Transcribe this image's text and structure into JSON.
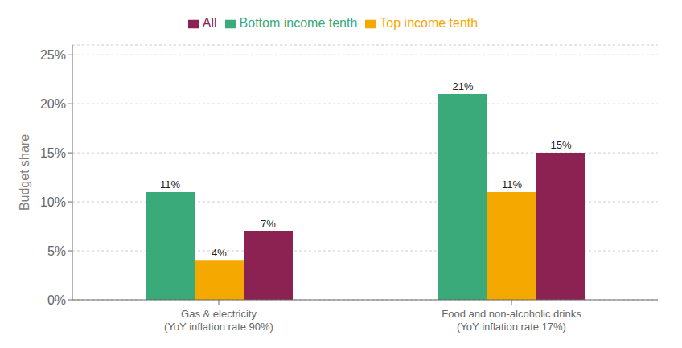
{
  "chart_data": {
    "type": "bar",
    "categories": [
      "Gas & electricity\n(YoY inflation rate 90%)",
      "Food and non-alcoholic drinks\n(YoY inflation rate 17%)"
    ],
    "series": [
      {
        "name": "Bottom income tenth",
        "color": "#3aaa7a",
        "values": [
          11,
          21
        ],
        "value_labels": [
          "11%",
          "21%"
        ]
      },
      {
        "name": "Top income tenth",
        "color": "#f5a800",
        "values": [
          4,
          11
        ],
        "value_labels": [
          "4%",
          "11%"
        ]
      },
      {
        "name": "All",
        "color": "#8b2252",
        "values": [
          7,
          15
        ],
        "value_labels": [
          "7%",
          "15%"
        ]
      }
    ],
    "ylabel": "Budget share",
    "ylim": [
      0,
      26
    ],
    "yticks": [
      {
        "value": 0,
        "label": "0%"
      },
      {
        "value": 5,
        "label": "5%"
      },
      {
        "value": 10,
        "label": "10%"
      },
      {
        "value": 15,
        "label": "15%"
      },
      {
        "value": 20,
        "label": "20%"
      },
      {
        "value": 25,
        "label": "25%"
      }
    ],
    "grid": true,
    "legend": "top",
    "data_labels": true
  }
}
